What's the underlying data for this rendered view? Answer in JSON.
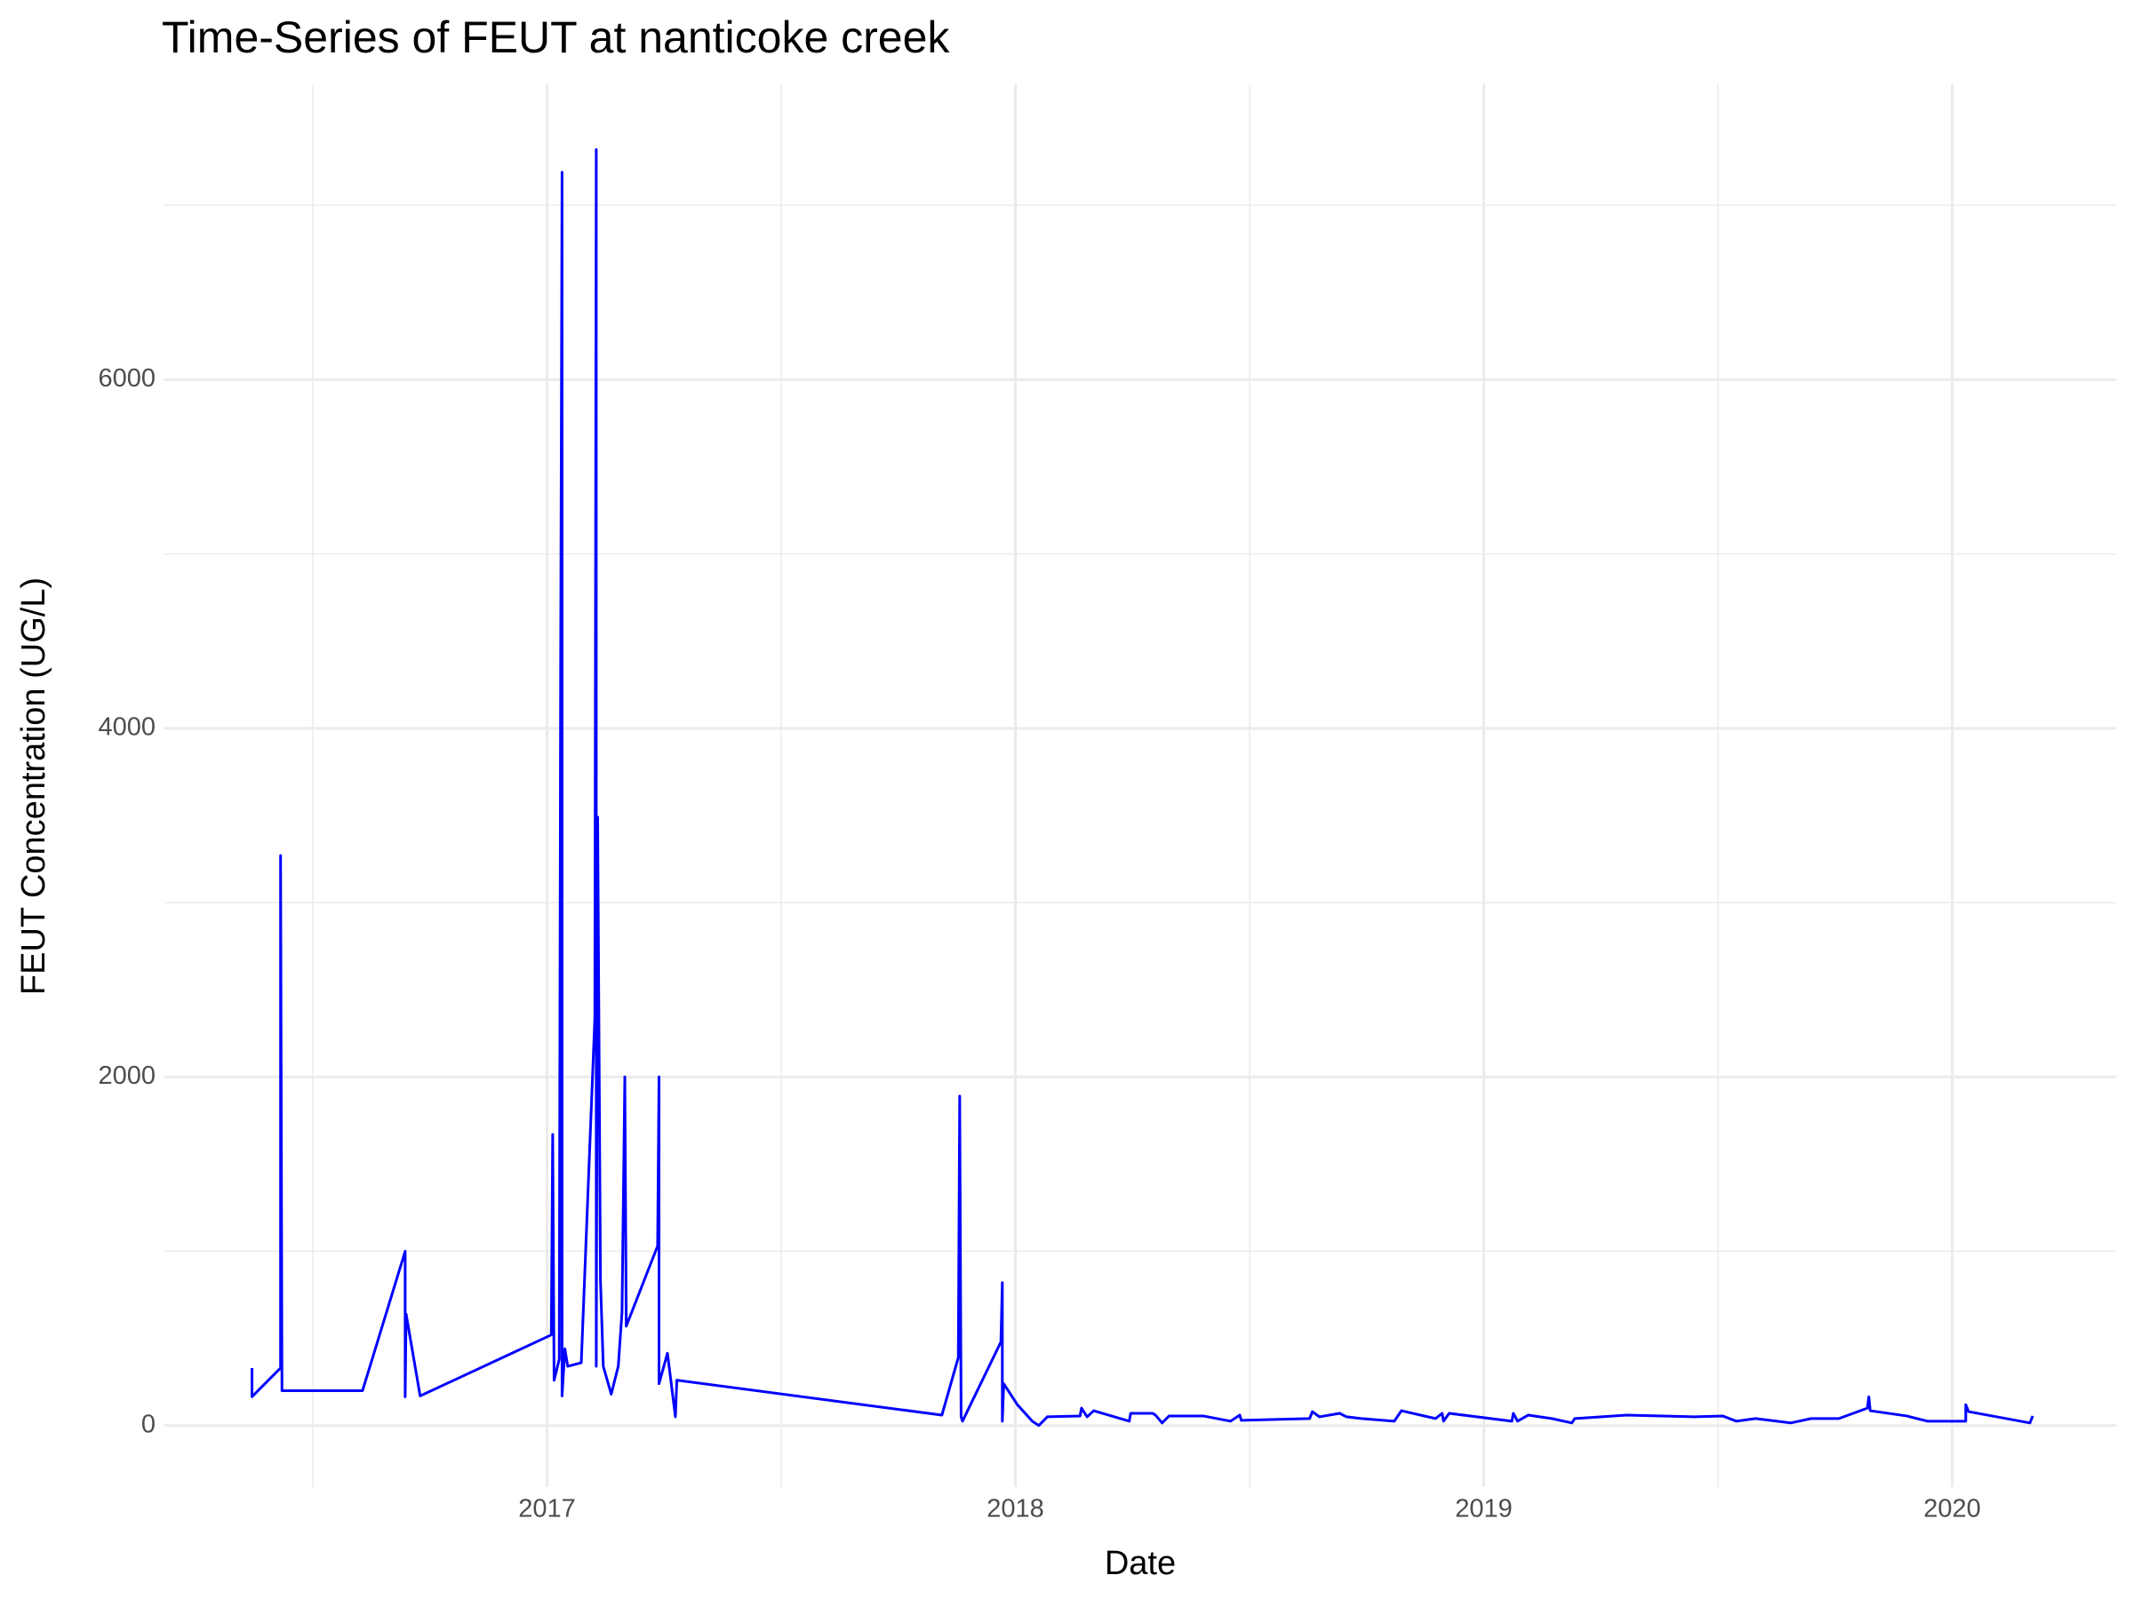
{
  "chart_data": {
    "type": "line",
    "title": "Time-Series of FEUT at nanticoke creek",
    "x_label": "Date",
    "y_label": "FEUT Concentration (UG/L)",
    "series": [
      {
        "name": "FEUT",
        "color": "#0000ff",
        "x": [
          2016.37,
          2016.37,
          2016.431,
          2016.431,
          2016.434,
          2016.606,
          2016.697,
          2016.697,
          2016.699,
          2016.729,
          2017.009,
          2017.012,
          2017.015,
          2017.026,
          2017.029,
          2017.032,
          2017.032,
          2017.038,
          2017.044,
          2017.073,
          2017.102,
          2017.105,
          2017.105,
          2017.108,
          2017.114,
          2017.12,
          2017.137,
          2017.152,
          2017.16,
          2017.166,
          2017.169,
          2017.236,
          2017.239,
          2017.239,
          2017.257,
          2017.274,
          2017.277,
          2017.843,
          2017.878,
          2017.881,
          2017.884,
          2017.887,
          2017.969,
          2017.972,
          2017.972,
          2017.975,
          2018.004,
          2018.036,
          2018.05,
          2018.068,
          2018.138,
          2018.141,
          2018.153,
          2018.167,
          2018.243,
          2018.246,
          2018.293,
          2018.299,
          2018.313,
          2018.328,
          2018.401,
          2018.459,
          2018.479,
          2018.482,
          2018.628,
          2018.634,
          2018.649,
          2018.692,
          2018.707,
          2018.739,
          2018.809,
          2018.824,
          2018.897,
          2018.911,
          2018.914,
          2018.926,
          2019.06,
          2019.063,
          2019.072,
          2019.095,
          2019.145,
          2019.188,
          2019.194,
          2019.305,
          2019.451,
          2019.51,
          2019.539,
          2019.58,
          2019.655,
          2019.699,
          2019.758,
          2019.819,
          2019.822,
          2019.825,
          2019.903,
          2019.947,
          2020.029,
          2020.029,
          2020.035,
          2020.166,
          2020.172
        ],
        "values": [
          330,
          165,
          330,
          3270,
          200,
          200,
          1000,
          165,
          640,
          170,
          520,
          1670,
          260,
          380,
          4340,
          7190,
          170,
          440,
          340,
          360,
          2340,
          7320,
          340,
          3490,
          830,
          340,
          180,
          340,
          650,
          2000,
          570,
          1030,
          2000,
          240,
          415,
          50,
          260,
          60,
          390,
          1890,
          50,
          25,
          480,
          820,
          25,
          240,
          120,
          25,
          0,
          50,
          55,
          100,
          50,
          85,
          25,
          70,
          70,
          60,
          15,
          55,
          55,
          25,
          60,
          30,
          40,
          80,
          50,
          70,
          50,
          40,
          25,
          85,
          40,
          70,
          25,
          70,
          25,
          70,
          25,
          60,
          40,
          15,
          40,
          60,
          50,
          55,
          25,
          40,
          15,
          40,
          40,
          100,
          165,
          85,
          55,
          25,
          25,
          120,
          80,
          15,
          55
        ]
      }
    ],
    "xlim": [
      2016.183,
      2020.35
    ],
    "xticks": [
      2017,
      2018,
      2019,
      2020
    ],
    "minor_xticks": [
      2016.5,
      2017.5,
      2018.5,
      2019.5
    ],
    "ylim": [
      -353,
      7694
    ],
    "yticks": [
      0,
      2000,
      4000,
      6000
    ],
    "minor_yticks": [
      1000,
      3000,
      5000,
      7000
    ],
    "grid": true
  }
}
